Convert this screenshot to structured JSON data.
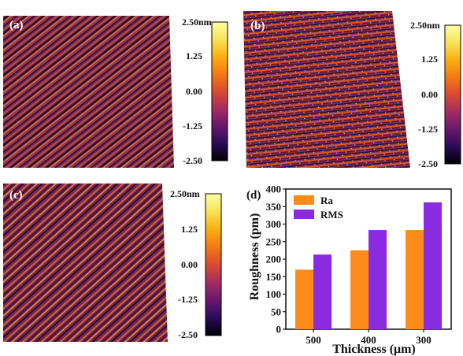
{
  "colormap": [
    "#000004",
    "#2a0b57",
    "#6a176e",
    "#a52c60",
    "#d94a31",
    "#f37a12",
    "#fcae12",
    "#f6e35a",
    "#fcffa4"
  ],
  "afm_panels": [
    {
      "label": "(a)",
      "colorbar": {
        "unit_top": "2.50nm",
        "ticks": [
          "1.25",
          "0.00",
          "-1.25",
          "-2.50"
        ]
      }
    },
    {
      "label": "(b)",
      "colorbar": {
        "unit_top": "2.50nm",
        "ticks": [
          "1.25",
          "0.00",
          "-1.25",
          "-2.50"
        ]
      }
    },
    {
      "label": "(c)",
      "colorbar": {
        "unit_top": "2.50nm",
        "ticks": [
          "1.25",
          "0.00",
          "-1.25",
          "-2.50"
        ]
      }
    }
  ],
  "chart_data": {
    "type": "bar",
    "panel_label": "(d)",
    "categories": [
      "500",
      "400",
      "300"
    ],
    "series": [
      {
        "name": "Ra",
        "values": [
          170,
          225,
          283
        ],
        "color": "#ff8c1a"
      },
      {
        "name": "RMS",
        "values": [
          213,
          283,
          362
        ],
        "color": "#8a2be2"
      }
    ],
    "xlabel": "Thickness (μm)",
    "ylabel": "Roughness (pm)",
    "ylim": [
      0,
      400
    ],
    "yticks": [
      "0",
      "50",
      "100",
      "150",
      "200",
      "250",
      "300",
      "350",
      "400"
    ],
    "grid": false,
    "legend_position": "top-left"
  }
}
